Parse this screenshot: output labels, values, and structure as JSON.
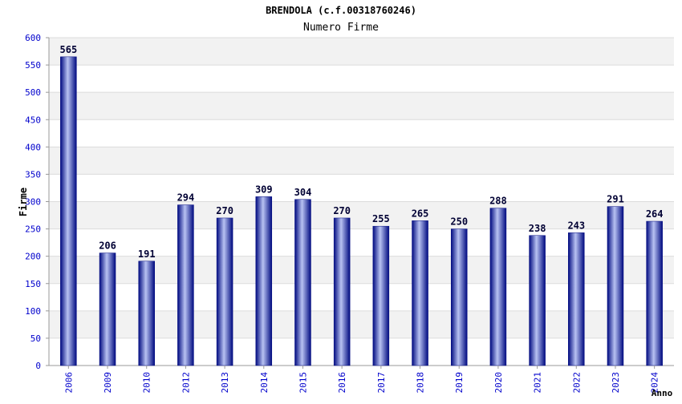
{
  "chart_data": {
    "type": "bar",
    "title": "BRENDOLA (c.f.00318760246)",
    "subtitle": "Numero Firme",
    "xlabel": "Anno",
    "ylabel": "Firme",
    "categories": [
      "2006",
      "2009",
      "2010",
      "2012",
      "2013",
      "2014",
      "2015",
      "2016",
      "2017",
      "2018",
      "2019",
      "2020",
      "2021",
      "2022",
      "2023",
      "2024"
    ],
    "values": [
      565,
      206,
      191,
      294,
      270,
      309,
      304,
      270,
      255,
      265,
      250,
      288,
      238,
      243,
      291,
      264
    ],
    "ylim": [
      0,
      600
    ],
    "yticks": [
      0,
      50,
      100,
      150,
      200,
      250,
      300,
      350,
      400,
      450,
      500,
      550,
      600
    ],
    "grid": true,
    "colors": {
      "bar_dark": "#000a80",
      "bar_light": "#b8c2f2",
      "band": "#f2f2f2",
      "tick_label": "#0000cc",
      "value_label": "#000033"
    }
  }
}
